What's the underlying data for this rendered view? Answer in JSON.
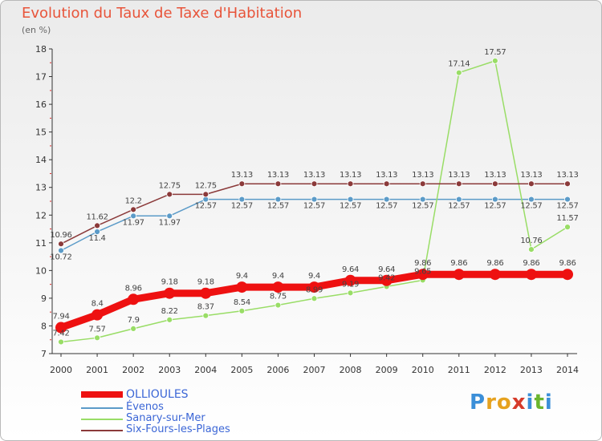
{
  "title": "Evolution du Taux de Taxe d'Habitation",
  "unit_label": "(en %)",
  "logo": {
    "text": "Proxiti",
    "letter_colors": [
      "#3b8fd8",
      "#e6a21f",
      "#e6a21f",
      "#d63b2b",
      "#3b8fd8",
      "#6bb52e",
      "#3b8fd8"
    ]
  },
  "chart_data": {
    "type": "line",
    "x": [
      2000,
      2001,
      2002,
      2003,
      2004,
      2005,
      2006,
      2007,
      2008,
      2009,
      2010,
      2011,
      2012,
      2013,
      2014
    ],
    "ylim": [
      7,
      18
    ],
    "yticks": [
      7,
      8,
      9,
      10,
      11,
      12,
      13,
      14,
      15,
      16,
      17,
      18
    ],
    "grid": false,
    "legend_position": "bottom-left",
    "series": [
      {
        "name": "OLLIOULES",
        "color": "#ee1111",
        "values": [
          7.94,
          8.4,
          8.96,
          9.18,
          9.18,
          9.4,
          9.4,
          9.4,
          9.64,
          9.64,
          9.86,
          9.86,
          9.86,
          9.86,
          9.86
        ],
        "labels": [
          "7.94",
          "8.4",
          "8.96",
          "9.18",
          "9.18",
          "9.4",
          "9.4",
          "9.4",
          "9.64",
          "9.64",
          "9.86",
          "9.86",
          "9.86",
          "9.86",
          "9.86"
        ]
      },
      {
        "name": "Évenos",
        "color": "#5b9bc8",
        "values": [
          10.72,
          11.4,
          11.97,
          11.97,
          12.57,
          12.57,
          12.57,
          12.57,
          12.57,
          12.57,
          12.57,
          12.57,
          12.57,
          12.57,
          12.57
        ],
        "labels": [
          "10.72",
          "11.4",
          "11.97",
          "11.97",
          "12.57",
          "12.57",
          "12.57",
          "12.57",
          "12.57",
          "12.57",
          "12.57",
          "12.57",
          "12.57",
          "12.57",
          "12.57"
        ]
      },
      {
        "name": "Sanary-sur-Mer",
        "color": "#99dd66",
        "values": [
          7.42,
          7.57,
          7.9,
          8.22,
          8.37,
          8.54,
          8.75,
          8.99,
          9.19,
          9.42,
          9.65,
          17.14,
          17.57,
          10.76,
          11.57
        ],
        "labels": [
          "7.42",
          "7.57",
          "7.9",
          "8.22",
          "8.37",
          "8.54",
          "8.75",
          "8.99",
          "9.19",
          "9.42",
          "9.65",
          "17.14",
          "17.57",
          "10.76",
          "11.57"
        ]
      },
      {
        "name": "Six-Fours-les-Plages",
        "color": "#8b3a3a",
        "values": [
          10.96,
          11.62,
          12.2,
          12.75,
          12.75,
          13.13,
          13.13,
          13.13,
          13.13,
          13.13,
          13.13,
          13.13,
          13.13,
          13.13,
          13.13
        ],
        "labels": [
          "10.96",
          "11.62",
          "12.2",
          "12.75",
          "12.75",
          "13.13",
          "13.13",
          "13.13",
          "13.13",
          "13.13",
          "13.13",
          "13.13",
          "13.13",
          "13.13",
          "13.13"
        ]
      }
    ]
  }
}
